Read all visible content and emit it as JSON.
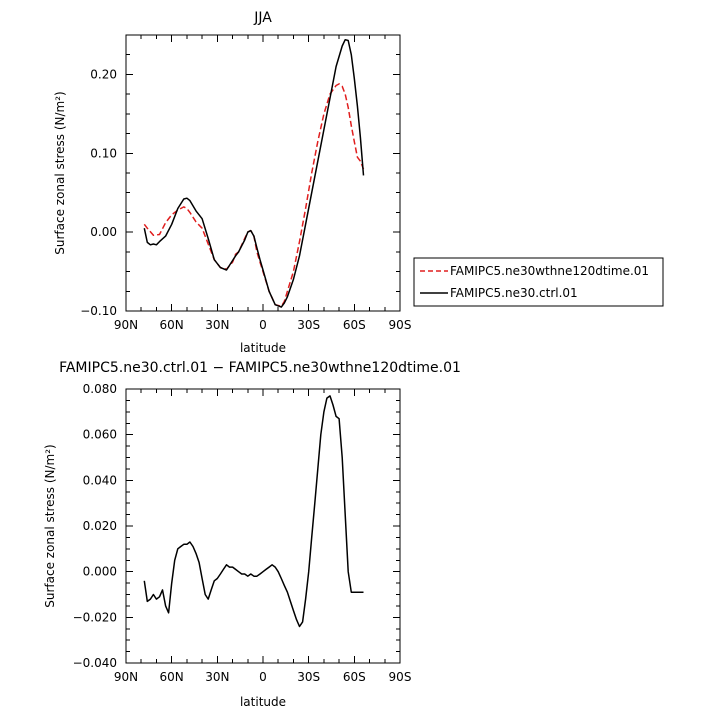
{
  "chart_data": [
    {
      "type": "line",
      "title": "JJA",
      "xlabel": "latitude",
      "ylabel": "Surface zonal stress (N/m²)",
      "xlim": [
        90,
        -90
      ],
      "ylim": [
        -0.1,
        0.25
      ],
      "xticks": [
        90,
        60,
        30,
        0,
        -30,
        -60,
        -90
      ],
      "xtick_labels": [
        "90N",
        "60N",
        "30N",
        "0",
        "30S",
        "60S",
        "90S"
      ],
      "yticks": [
        -0.1,
        0.0,
        0.1,
        0.2
      ],
      "ytick_labels": [
        "−0.10",
        "0.00",
        "0.10",
        "0.20"
      ],
      "legend": "right",
      "series": [
        {
          "name": "FAMIPC5.ne30wthne120dtime.01",
          "color": "#e01e1e",
          "dash": "dashed",
          "x": [
            78,
            76,
            72,
            68,
            64,
            60,
            56,
            52,
            50,
            48,
            44,
            40,
            36,
            32,
            28,
            24,
            20,
            18,
            16,
            12,
            10,
            8,
            6,
            4,
            2,
            0,
            -4,
            -8,
            -12,
            -14,
            -16,
            -20,
            -24,
            -28,
            -32,
            -36,
            -40,
            -44,
            -48,
            -50,
            -52,
            -54,
            -56,
            -58,
            -60,
            -62,
            -64,
            -66
          ],
          "y": [
            0.01,
            0.005,
            -0.004,
            -0.003,
            0.012,
            0.022,
            0.028,
            0.032,
            0.03,
            0.025,
            0.013,
            0.005,
            -0.015,
            -0.035,
            -0.045,
            -0.047,
            -0.038,
            -0.028,
            -0.025,
            -0.008,
            0.0,
            0.002,
            -0.005,
            -0.025,
            -0.038,
            -0.05,
            -0.075,
            -0.092,
            -0.094,
            -0.088,
            -0.075,
            -0.05,
            -0.012,
            0.03,
            0.075,
            0.115,
            0.15,
            0.175,
            0.186,
            0.188,
            0.185,
            0.175,
            0.158,
            0.135,
            0.115,
            0.095,
            0.09,
            0.08
          ]
        },
        {
          "name": "FAMIPC5.ne30.ctrl.01",
          "color": "#000000",
          "dash": "solid",
          "x": [
            78,
            76,
            74,
            72,
            70,
            68,
            64,
            60,
            56,
            52,
            50,
            48,
            44,
            40,
            36,
            32,
            28,
            24,
            20,
            18,
            16,
            12,
            10,
            8,
            6,
            4,
            2,
            0,
            -4,
            -8,
            -12,
            -14,
            -16,
            -20,
            -24,
            -28,
            -32,
            -36,
            -40,
            -44,
            -48,
            -52,
            -54,
            -56,
            -58,
            -60,
            -62,
            -64,
            -66
          ],
          "y": [
            0.005,
            -0.013,
            -0.016,
            -0.015,
            -0.016,
            -0.012,
            -0.005,
            0.01,
            0.03,
            0.042,
            0.043,
            0.04,
            0.027,
            0.017,
            -0.008,
            -0.035,
            -0.045,
            -0.048,
            -0.036,
            -0.03,
            -0.025,
            -0.01,
            0.0,
            0.002,
            -0.005,
            -0.02,
            -0.035,
            -0.048,
            -0.075,
            -0.092,
            -0.095,
            -0.09,
            -0.082,
            -0.06,
            -0.03,
            0.01,
            0.05,
            0.09,
            0.13,
            0.17,
            0.21,
            0.236,
            0.244,
            0.243,
            0.225,
            0.195,
            0.16,
            0.12,
            0.072
          ]
        }
      ]
    },
    {
      "type": "line",
      "title": "FAMIPC5.ne30.ctrl.01 − FAMIPC5.ne30wthne120dtime.01",
      "xlabel": "latitude",
      "ylabel": "Surface zonal stress (N/m²)",
      "xlim": [
        90,
        -90
      ],
      "ylim": [
        -0.04,
        0.08
      ],
      "xticks": [
        90,
        60,
        30,
        0,
        -30,
        -60,
        -90
      ],
      "xtick_labels": [
        "90N",
        "60N",
        "30N",
        "0",
        "30S",
        "60S",
        "90S"
      ],
      "yticks": [
        -0.04,
        -0.02,
        0.0,
        0.02,
        0.04,
        0.06,
        0.08
      ],
      "ytick_labels": [
        "−0.040",
        "−0.020",
        "0.000",
        "0.020",
        "0.040",
        "0.060",
        "0.080"
      ],
      "series": [
        {
          "color": "#000000",
          "dash": "solid",
          "x": [
            78,
            76,
            74,
            72,
            70,
            68,
            66,
            64,
            62,
            60,
            58,
            56,
            54,
            52,
            50,
            48,
            46,
            44,
            42,
            40,
            38,
            36,
            34,
            32,
            30,
            28,
            26,
            24,
            22,
            20,
            18,
            16,
            14,
            12,
            10,
            8,
            6,
            4,
            2,
            0,
            -2,
            -4,
            -6,
            -8,
            -10,
            -12,
            -14,
            -16,
            -18,
            -20,
            -22,
            -24,
            -26,
            -28,
            -30,
            -32,
            -34,
            -36,
            -38,
            -40,
            -42,
            -44,
            -46,
            -48,
            -50,
            -52,
            -54,
            -56,
            -58,
            -60,
            -62,
            -64,
            -66
          ],
          "y": [
            -0.004,
            -0.013,
            -0.012,
            -0.01,
            -0.012,
            -0.011,
            -0.008,
            -0.015,
            -0.018,
            -0.005,
            0.005,
            0.01,
            0.011,
            0.012,
            0.012,
            0.013,
            0.011,
            0.008,
            0.004,
            -0.003,
            -0.01,
            -0.012,
            -0.008,
            -0.004,
            -0.003,
            -0.001,
            0.001,
            0.003,
            0.002,
            0.002,
            0.001,
            0.0,
            -0.001,
            -0.001,
            -0.002,
            -0.001,
            -0.002,
            -0.002,
            -0.001,
            0.0,
            0.001,
            0.002,
            0.003,
            0.002,
            0.0,
            -0.003,
            -0.006,
            -0.009,
            -0.013,
            -0.017,
            -0.021,
            -0.024,
            -0.022,
            -0.012,
            0.0,
            0.015,
            0.03,
            0.045,
            0.06,
            0.07,
            0.076,
            0.077,
            0.073,
            0.068,
            0.067,
            0.05,
            0.025,
            0.0,
            -0.009,
            -0.009,
            -0.009,
            -0.009,
            -0.009
          ]
        }
      ]
    }
  ]
}
